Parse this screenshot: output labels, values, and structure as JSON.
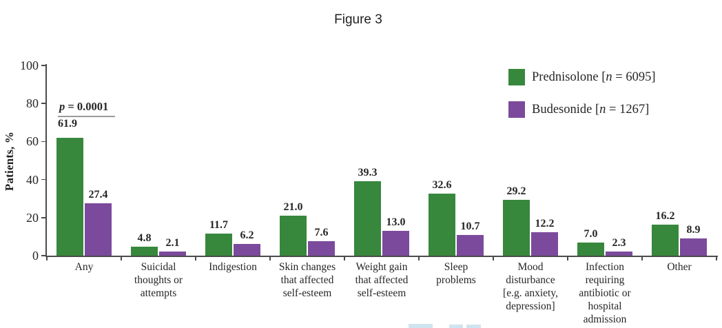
{
  "figure": {
    "title": "Figure 3"
  },
  "colors": {
    "prednisolone_green": "#37883c",
    "budesonide_purple": "#7c4a9c",
    "axis": "#4a4a4a",
    "text": "#262626",
    "artifact_blue": "#cfe4ef"
  },
  "chart_data": {
    "type": "bar",
    "title": "Figure 3",
    "xlabel": "",
    "ylabel": "Patients, %",
    "ylim": [
      0,
      100
    ],
    "yticks": [
      0,
      20,
      40,
      60,
      80,
      100
    ],
    "ytick_labels": [
      "0",
      "20",
      "40",
      "60",
      "80",
      "100"
    ],
    "grid": false,
    "legend_position": "top-right",
    "categories": [
      "Any",
      "Suicidal thoughts or attempts",
      "Indigestion",
      "Skin changes that affected self-esteem",
      "Weight gain that affected self-esteem",
      "Sleep problems",
      "Mood disturbance [e.g. anxiety, depression]",
      "Infection requiring antibiotic or hospital admission",
      "Other"
    ],
    "categories_multiline": [
      [
        "Any"
      ],
      [
        "Suicidal",
        "thoughts or",
        "attempts"
      ],
      [
        "Indigestion"
      ],
      [
        "Skin changes",
        "that affected",
        "self-esteem"
      ],
      [
        "Weight gain",
        "that affected",
        "self-esteem"
      ],
      [
        "Sleep",
        "problems"
      ],
      [
        "Mood",
        "disturbance",
        "[e.g. anxiety,",
        "depression]"
      ],
      [
        "Infection",
        "requiring",
        "antibiotic or",
        "hospital",
        "admission"
      ],
      [
        "Other"
      ]
    ],
    "series": [
      {
        "name": "Prednisolone [n = 6095]",
        "legend_pre": "Prednisolone [",
        "legend_n": "n",
        "legend_post": " = 6095]",
        "color": "#37883c",
        "values": [
          61.9,
          4.8,
          11.7,
          21.0,
          39.3,
          32.6,
          29.2,
          7.0,
          16.2
        ],
        "labels": [
          "61.9",
          "4.8",
          "11.7",
          "21.0",
          "39.3",
          "32.6",
          "29.2",
          "7.0",
          "16.2"
        ]
      },
      {
        "name": "Budesonide [n = 1267]",
        "legend_pre": "Budesonide [",
        "legend_n": "n",
        "legend_post": " = 1267]",
        "color": "#7c4a9c",
        "values": [
          27.4,
          2.1,
          6.2,
          7.6,
          13.0,
          10.7,
          12.2,
          2.3,
          8.9
        ],
        "labels": [
          "27.4",
          "2.1",
          "6.2",
          "7.6",
          "13.0",
          "10.7",
          "12.2",
          "2.3",
          "8.9"
        ]
      }
    ],
    "annotations": [
      {
        "text": "p = 0.0001",
        "p_italic": "p",
        "p_rest": " = 0.0001",
        "category_index": 0
      }
    ]
  }
}
